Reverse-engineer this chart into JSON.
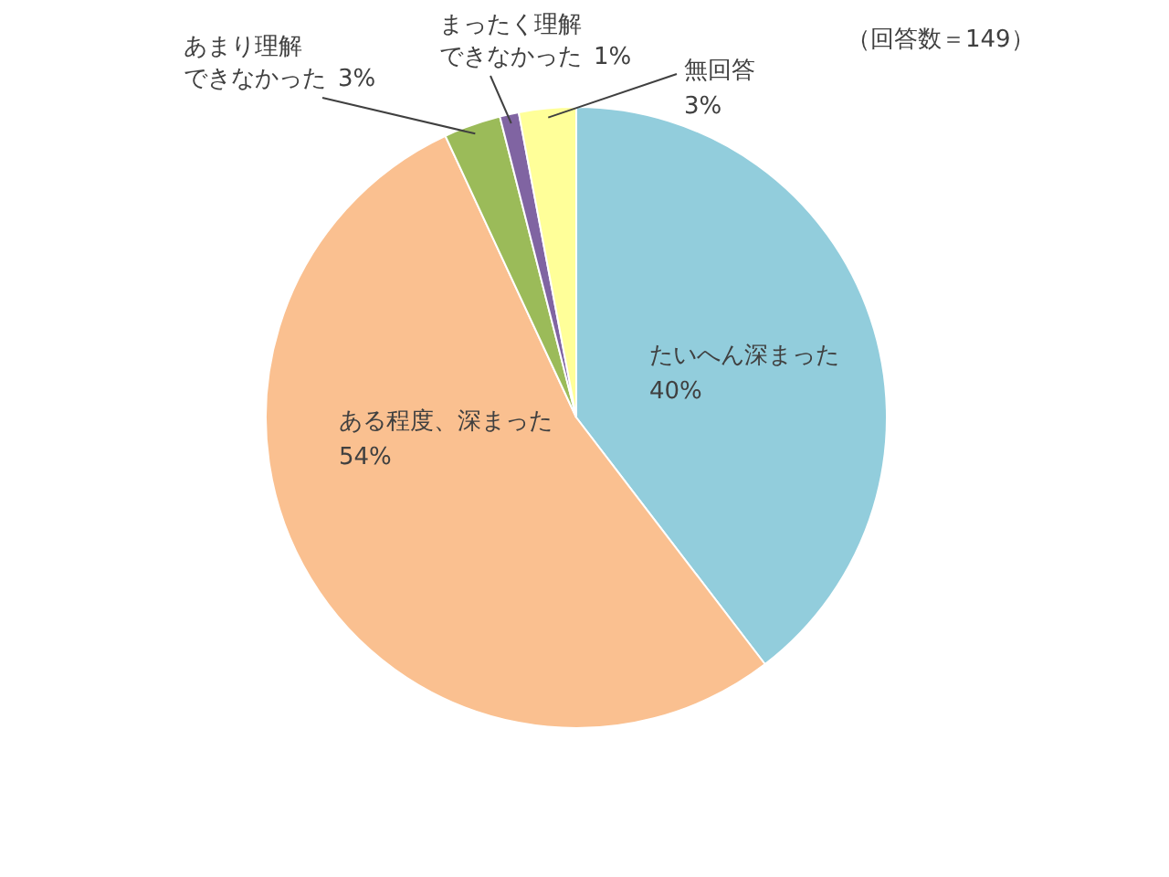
{
  "chart_data": {
    "type": "pie",
    "categories": [
      "たいへん深まった",
      "ある程度、深まった",
      "あまり理解できなかった",
      "まったく理解できなかった",
      "無回答"
    ],
    "values": [
      40,
      54,
      3,
      1,
      3
    ],
    "colors": [
      "#92cddc",
      "#fac090",
      "#9bbb59",
      "#8064a2",
      "#ffff99"
    ],
    "value_labels": [
      "40%",
      "54%",
      "3%",
      "1%",
      "3%"
    ],
    "annotations": [
      "（回答数＝149）"
    ]
  }
}
